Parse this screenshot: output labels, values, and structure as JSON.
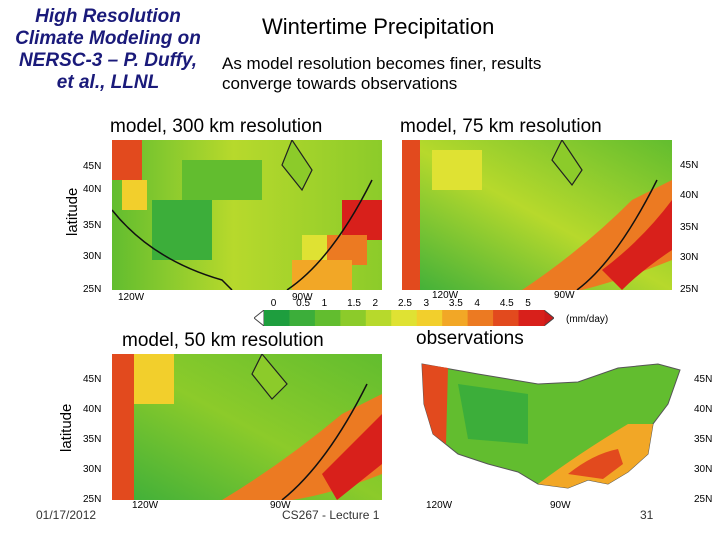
{
  "slide": {
    "side_title_lines": [
      "High Resolution",
      "Climate Modeling on",
      "NERSC-3 – P. Duffy,",
      "et al., LLNL"
    ],
    "title": "Wintertime Precipitation",
    "subtitle_lines": [
      "As model resolution becomes finer, results",
      "converge towards observations"
    ]
  },
  "panels": [
    {
      "title": "model, 300 km resolution",
      "lat_ticks": [
        "45N",
        "40N",
        "35N",
        "30N",
        "25N"
      ],
      "lon_ticks": [
        "120W",
        "90W"
      ]
    },
    {
      "title": "model, 75 km resolution",
      "lat_ticks": [
        "45N",
        "40N",
        "35N",
        "30N",
        "25N"
      ],
      "lon_ticks": [
        "120W",
        "90W"
      ]
    },
    {
      "title": "model, 50 km resolution",
      "lat_ticks": [
        "45N",
        "40N",
        "35N",
        "30N",
        "25N"
      ],
      "lon_ticks": [
        "120W",
        "90W"
      ]
    },
    {
      "title": "observations",
      "lat_ticks": [
        "45N",
        "40N",
        "35N",
        "30N",
        "25N"
      ],
      "lon_ticks": [
        "120W",
        "90W"
      ]
    }
  ],
  "axis": {
    "ylabel": "latitude"
  },
  "colorbar": {
    "ticks": [
      "0",
      "0.5",
      "1",
      "1.5",
      "2",
      "2.5",
      "3",
      "3.5",
      "4",
      "4.5",
      "5"
    ],
    "unit": "(mm/day)",
    "colors": [
      "#1e9e3e",
      "#3cae3a",
      "#62bd2f",
      "#8ccb2a",
      "#b7d92c",
      "#dfe233",
      "#f2cf2c",
      "#f2a726",
      "#ec7a22",
      "#e24a1e",
      "#d8201b"
    ]
  },
  "footer": {
    "date": "01/17/2012",
    "lecture": "CS267 - Lecture 1",
    "page": "31"
  }
}
